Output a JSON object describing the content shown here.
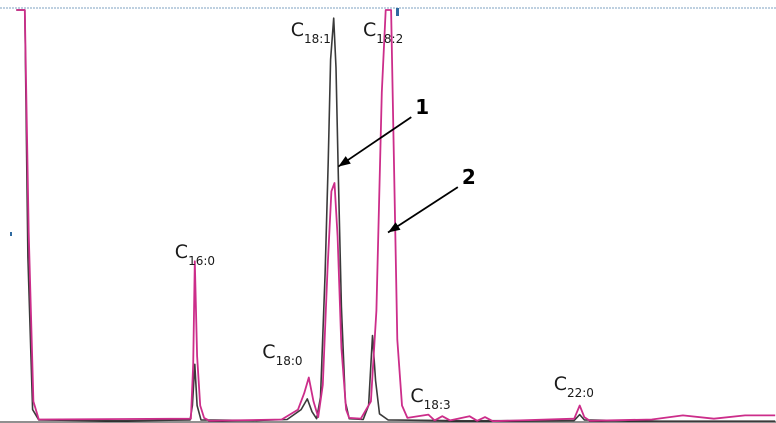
{
  "chart_data": {
    "type": "line",
    "title": "",
    "xlabel": "",
    "ylabel": "",
    "xlim": [
      0,
      100
    ],
    "ylim": [
      0,
      100
    ],
    "grid": false,
    "peaks": [
      {
        "base": "C",
        "sub": "16:0",
        "x": 25.1
      },
      {
        "base": "C",
        "sub": "18:1",
        "x": 43.0
      },
      {
        "base": "C",
        "sub": "18:2",
        "x": 50.0
      },
      {
        "base": "C",
        "sub": "18:0",
        "x": 39.6
      },
      {
        "base": "C",
        "sub": "18:3",
        "x": 55.2
      },
      {
        "base": "C",
        "sub": "22:0",
        "x": 74.7
      }
    ],
    "callouts": [
      {
        "label": "1",
        "series": 0,
        "tip": [
          43.6,
          62
        ],
        "tail": [
          53,
          74
        ]
      },
      {
        "label": "2",
        "series": 1,
        "tip": [
          50.0,
          46
        ],
        "tail": [
          59,
          57
        ]
      }
    ],
    "series": [
      {
        "color": "#3a3a3a",
        "points": [
          [
            2.1,
            100
          ],
          [
            3.2,
            100
          ],
          [
            3.6,
            40
          ],
          [
            4.2,
            3
          ],
          [
            5,
            0.5
          ],
          [
            15,
            0.3
          ],
          [
            24.5,
            0.5
          ],
          [
            24.8,
            4
          ],
          [
            25.1,
            14
          ],
          [
            25.4,
            4
          ],
          [
            25.9,
            0.5
          ],
          [
            33,
            0.4
          ],
          [
            37,
            0.6
          ],
          [
            38.8,
            3
          ],
          [
            39.6,
            5.6
          ],
          [
            40.2,
            2.5
          ],
          [
            40.8,
            0.8
          ],
          [
            41.3,
            6
          ],
          [
            41.9,
            36
          ],
          [
            42.3,
            63
          ],
          [
            42.6,
            88
          ],
          [
            43.0,
            98
          ],
          [
            43.3,
            86
          ],
          [
            43.6,
            60
          ],
          [
            44,
            28
          ],
          [
            44.5,
            5
          ],
          [
            45,
            0.8
          ],
          [
            46.8,
            0.6
          ],
          [
            47.5,
            4
          ],
          [
            48,
            21
          ],
          [
            48.4,
            10
          ],
          [
            48.9,
            2
          ],
          [
            50,
            0.5
          ],
          [
            60,
            0.3
          ],
          [
            74,
            0.4
          ],
          [
            74.7,
            1.8
          ],
          [
            75.3,
            0.5
          ],
          [
            85,
            0.2
          ],
          [
            99.9,
            0.2
          ]
        ]
      },
      {
        "color": "#cc2d8a",
        "points": [
          [
            2.1,
            100
          ],
          [
            3.2,
            100
          ],
          [
            3.7,
            46
          ],
          [
            4.3,
            5
          ],
          [
            5,
            0.6
          ],
          [
            24.6,
            0.8
          ],
          [
            24.9,
            14
          ],
          [
            25.1,
            39
          ],
          [
            25.4,
            16
          ],
          [
            25.8,
            4
          ],
          [
            26.3,
            1
          ],
          [
            27,
            0.3
          ],
          [
            36.3,
            0.6
          ],
          [
            38.4,
            3
          ],
          [
            39.2,
            7
          ],
          [
            39.8,
            10.8
          ],
          [
            40.4,
            5
          ],
          [
            41,
            1.2
          ],
          [
            41.6,
            9
          ],
          [
            42.2,
            37
          ],
          [
            42.7,
            56
          ],
          [
            43.1,
            58
          ],
          [
            43.5,
            45
          ],
          [
            44,
            18
          ],
          [
            44.6,
            3
          ],
          [
            45,
            1
          ],
          [
            46.5,
            0.8
          ],
          [
            47.8,
            5
          ],
          [
            48.5,
            27
          ],
          [
            49.2,
            80
          ],
          [
            49.7,
            100
          ],
          [
            50.4,
            100
          ],
          [
            50.8,
            60
          ],
          [
            51.2,
            20
          ],
          [
            51.8,
            4
          ],
          [
            52.5,
            1
          ],
          [
            55.2,
            1.8
          ],
          [
            56,
            0.4
          ],
          [
            57,
            1.4
          ],
          [
            58,
            0.4
          ],
          [
            60.5,
            1.4
          ],
          [
            61.5,
            0.3
          ],
          [
            62.5,
            1.2
          ],
          [
            63.5,
            0.2
          ],
          [
            74,
            0.8
          ],
          [
            74.7,
            4
          ],
          [
            75.3,
            1.2
          ],
          [
            76,
            0.3
          ],
          [
            84,
            0.6
          ],
          [
            88,
            1.6
          ],
          [
            92,
            0.8
          ],
          [
            96,
            1.6
          ],
          [
            99.9,
            1.6
          ]
        ]
      }
    ]
  }
}
